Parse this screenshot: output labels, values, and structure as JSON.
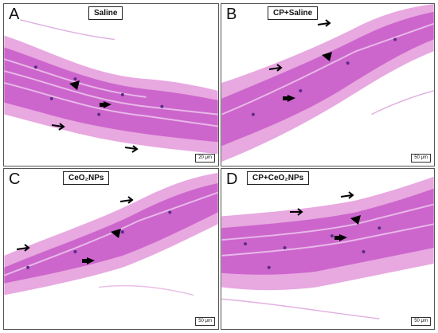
{
  "figure": {
    "panels": [
      {
        "letter": "A",
        "label": "Saline",
        "scale": "20 μm"
      },
      {
        "letter": "B",
        "label": "CP+Saline",
        "scale": "50 μm"
      },
      {
        "letter": "C",
        "label": "CeO₂NPs",
        "scale": "50 μm"
      },
      {
        "letter": "D",
        "label": "CP+CeO₂NPs",
        "scale": "50 μm"
      }
    ],
    "colors": {
      "stain_dark": "#c050c0",
      "stain_light": "#e8a8e0",
      "nuclei": "#5a2a8a",
      "background": "#ffffff"
    }
  }
}
